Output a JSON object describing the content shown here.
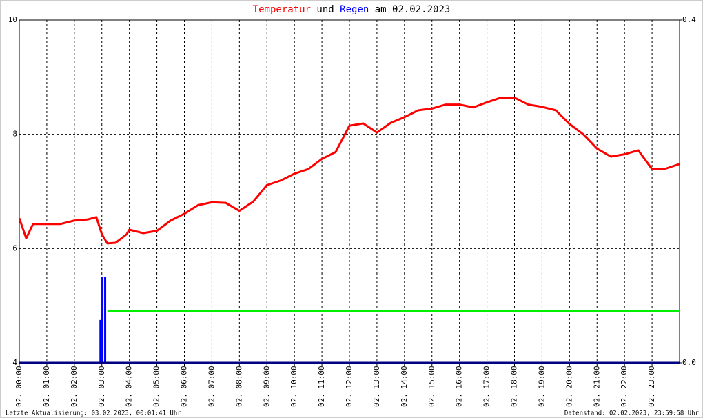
{
  "chart_data": {
    "type": "line",
    "title_parts": [
      "und",
      "am 02.02.2023"
    ],
    "xlim": [
      0,
      24
    ],
    "xticks": [
      {
        "value": 0,
        "label": "02. 00:00"
      },
      {
        "value": 1,
        "label": "02. 01:00"
      },
      {
        "value": 2,
        "label": "02. 02:00"
      },
      {
        "value": 3,
        "label": "02. 03:00"
      },
      {
        "value": 4,
        "label": "02. 04:00"
      },
      {
        "value": 5,
        "label": "02. 05:00"
      },
      {
        "value": 6,
        "label": "02. 06:00"
      },
      {
        "value": 7,
        "label": "02. 07:00"
      },
      {
        "value": 8,
        "label": "02. 08:00"
      },
      {
        "value": 9,
        "label": "02. 09:00"
      },
      {
        "value": 10,
        "label": "02. 10:00"
      },
      {
        "value": 11,
        "label": "02. 11:00"
      },
      {
        "value": 12,
        "label": "02. 12:00"
      },
      {
        "value": 13,
        "label": "02. 13:00"
      },
      {
        "value": 14,
        "label": "02. 14:00"
      },
      {
        "value": 15,
        "label": "02. 15:00"
      },
      {
        "value": 16,
        "label": "02. 16:00"
      },
      {
        "value": 17,
        "label": "02. 17:00"
      },
      {
        "value": 18,
        "label": "02. 18:00"
      },
      {
        "value": 19,
        "label": "02. 19:00"
      },
      {
        "value": 20,
        "label": "02. 20:00"
      },
      {
        "value": 21,
        "label": "02. 21:00"
      },
      {
        "value": 22,
        "label": "02. 22:00"
      },
      {
        "value": 23,
        "label": "02. 23:00"
      }
    ],
    "ylim": [
      4,
      10
    ],
    "yticks": [
      4,
      6,
      8,
      10
    ],
    "y2lim": [
      0,
      0.4
    ],
    "y2ticks": [
      {
        "value": 0,
        "label": "0.0"
      },
      0.4
    ],
    "grid": true,
    "series": [
      {
        "name": "Temperatur",
        "color": "#ff0000",
        "type": "line",
        "x": [
          0,
          0.25,
          0.5,
          1,
          1.5,
          2,
          2.5,
          2.8,
          3,
          3.2,
          3.5,
          3.9,
          4,
          4.5,
          5,
          5.5,
          6,
          6.5,
          7,
          7.5,
          8,
          8.5,
          9,
          9.5,
          10,
          10.5,
          11,
          11.5,
          12,
          12.5,
          13,
          13.5,
          14,
          14.5,
          15,
          15.5,
          16,
          16.5,
          17,
          17.5,
          18,
          18.5,
          19,
          19.5,
          20,
          20.5,
          21,
          21.5,
          22,
          22.5,
          23,
          23.5,
          24
        ],
        "values": [
          6.53,
          6.18,
          6.43,
          6.43,
          6.43,
          6.49,
          6.51,
          6.55,
          6.25,
          6.09,
          6.1,
          6.25,
          6.33,
          6.27,
          6.31,
          6.49,
          6.61,
          6.76,
          6.81,
          6.8,
          6.66,
          6.82,
          7.11,
          7.19,
          7.31,
          7.39,
          7.57,
          7.69,
          8.15,
          8.19,
          8.03,
          8.2,
          8.3,
          8.42,
          8.45,
          8.52,
          8.52,
          8.47,
          8.56,
          8.64,
          8.64,
          8.52,
          8.48,
          8.42,
          8.18,
          8,
          7.75,
          7.61,
          7.65,
          7.72,
          7.39,
          7.4,
          7.48
        ]
      },
      {
        "name": "Regen",
        "color": "#0000ff",
        "type": "bar",
        "axis": "y2",
        "x": [
          2.95,
          3.02,
          3.12
        ],
        "values": [
          0.05,
          0.1,
          0.1
        ]
      },
      {
        "color": "#00ee00",
        "type": "line",
        "axis": "y2",
        "x": [
          3.2,
          24
        ],
        "values": [
          0.06,
          0.06
        ]
      }
    ],
    "footer": [
      "Letzte Aktualisierung: 03.02.2023, 00:01:41 Uhr",
      "Datenstand: 02.02.2023, 23:59:58 Uhr"
    ]
  }
}
